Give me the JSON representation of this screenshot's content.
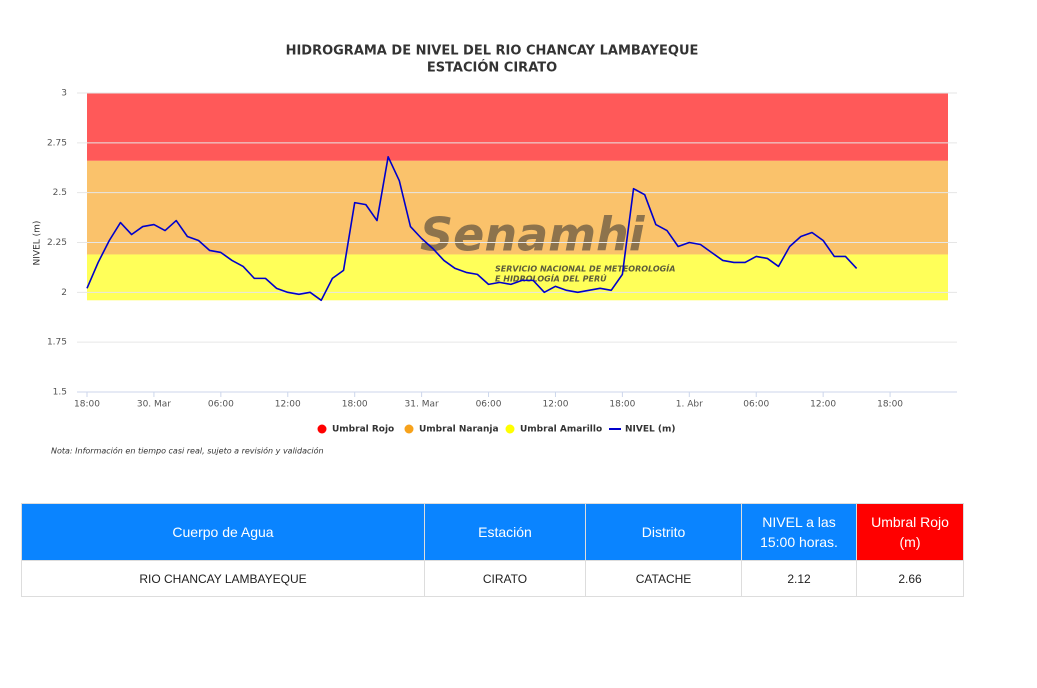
{
  "chart_data": {
    "type": "line",
    "title": "HIDROGRAMA DE NIVEL DEL RIO CHANCAY LAMBAYEQUE",
    "subtitle": "ESTACIÓN CIRATO",
    "y_label": "NIVEL (m)",
    "watermark": "Senamhi",
    "watermark_sub": [
      "SERVICIO NACIONAL DE METEOROLOGÍA",
      "E HIDROLOGÍA DEL PERÚ"
    ],
    "ylim": [
      1.5,
      3
    ],
    "yticks": [
      1.5,
      1.75,
      2,
      2.25,
      2.5,
      2.75,
      3
    ],
    "grid": true,
    "categories": [
      "18:00",
      null,
      null,
      null,
      null,
      null,
      "30. Mar",
      null,
      null,
      null,
      null,
      null,
      "06:00",
      null,
      null,
      null,
      null,
      null,
      "12:00",
      null,
      null,
      null,
      null,
      null,
      "18:00",
      null,
      null,
      null,
      null,
      null,
      "31. Mar",
      null,
      null,
      null,
      null,
      null,
      "06:00",
      null,
      null,
      null,
      null,
      null,
      "12:00",
      null,
      null,
      null,
      null,
      null,
      "18:00",
      null,
      null,
      null,
      null,
      null,
      "1. Abr",
      null,
      null,
      null,
      null,
      null,
      "06:00",
      null,
      null,
      null,
      null,
      null,
      "12:00",
      null,
      null,
      null,
      null,
      null,
      "18:00",
      null,
      null,
      null,
      null,
      null,
      null
    ],
    "bands": [
      {
        "name": "Umbral Rojo",
        "color": "#ff0000",
        "from": 2.66,
        "to": 3
      },
      {
        "name": "Umbral Naranja",
        "color": "#f7a21b",
        "from": 2.19,
        "to": 2.66
      },
      {
        "name": "Umbral Amarillo",
        "color": "#ffff00",
        "from": 1.96,
        "to": 2.19
      }
    ],
    "series": [
      {
        "name": "NIVEL (m)",
        "color": "#0000cc",
        "values": [
          2.02,
          2.15,
          2.26,
          2.35,
          2.29,
          2.33,
          2.34,
          2.31,
          2.36,
          2.28,
          2.26,
          2.21,
          2.2,
          2.16,
          2.13,
          2.07,
          2.07,
          2.02,
          2.0,
          1.99,
          2.0,
          1.96,
          2.07,
          2.11,
          2.45,
          2.44,
          2.36,
          2.68,
          2.56,
          2.33,
          2.27,
          2.22,
          2.16,
          2.12,
          2.1,
          2.09,
          2.04,
          2.05,
          2.04,
          2.06,
          2.06,
          2.0,
          2.03,
          2.01,
          2.0,
          2.01,
          2.02,
          2.01,
          2.09,
          2.52,
          2.49,
          2.34,
          2.31,
          2.23,
          2.25,
          2.24,
          2.2,
          2.16,
          2.15,
          2.15,
          2.18,
          2.17,
          2.13,
          2.23,
          2.28,
          2.3,
          2.26,
          2.18,
          2.18,
          2.12,
          null,
          null,
          null,
          null,
          null,
          null,
          null,
          null,
          null
        ]
      }
    ]
  },
  "note": "Nota: Información en tiempo casi real, sujeto a revisión y validación",
  "table": {
    "headers": [
      "Cuerpo de Agua",
      "Estación",
      "Distrito",
      "NIVEL a las 15:00 horas.",
      "Umbral Rojo (m)"
    ],
    "rows": [
      [
        "RIO CHANCAY LAMBAYEQUE",
        "CIRATO",
        "CATACHE",
        2.12,
        2.66
      ]
    ]
  }
}
